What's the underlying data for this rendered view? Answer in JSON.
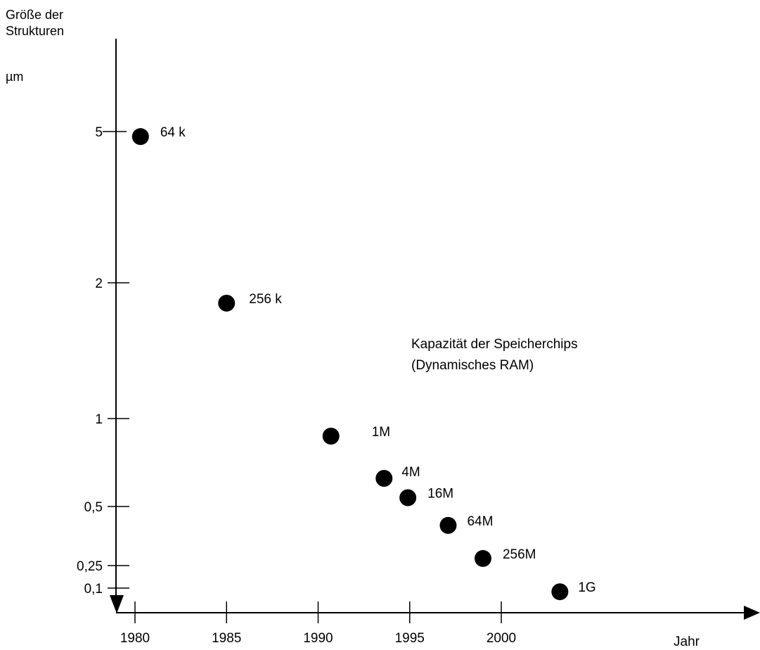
{
  "chart_data": {
    "type": "scatter",
    "ylabel_line1": "Größe der",
    "ylabel_line2": "Strukturen",
    "yunit": "µm",
    "xlabel": "Jahr",
    "annotation_line1": "Kapazität der Speicherchips",
    "annotation_line2": "(Dynamisches RAM)",
    "x_ticks": [
      {
        "value": 1980,
        "label": "1980"
      },
      {
        "value": 1985,
        "label": "1985"
      },
      {
        "value": 1990,
        "label": "1990"
      },
      {
        "value": 1995,
        "label": "1995"
      },
      {
        "value": 2000,
        "label": "2000"
      }
    ],
    "y_ticks": [
      {
        "value": 5,
        "label": "5"
      },
      {
        "value": 2,
        "label": "2"
      },
      {
        "value": 1,
        "label": "1"
      },
      {
        "value": 0.5,
        "label": "0,5"
      },
      {
        "value": 0.25,
        "label": "0,25"
      },
      {
        "value": 0.1,
        "label": "0,1"
      }
    ],
    "points": [
      {
        "x": 1980.3,
        "y": 4.9,
        "label": "64 k"
      },
      {
        "x": 1985.0,
        "y": 1.85,
        "label": "256 k"
      },
      {
        "x": 1990.7,
        "y": 0.9,
        "label": "1M"
      },
      {
        "x": 1993.6,
        "y": 0.66,
        "label": "4M"
      },
      {
        "x": 1994.9,
        "y": 0.55,
        "label": "16M"
      },
      {
        "x": 1997.1,
        "y": 0.42,
        "label": "64M"
      },
      {
        "x": 1999.0,
        "y": 0.28,
        "label": "256M"
      },
      {
        "x": 2003.2,
        "y": 0.08,
        "label": "1G"
      }
    ]
  }
}
